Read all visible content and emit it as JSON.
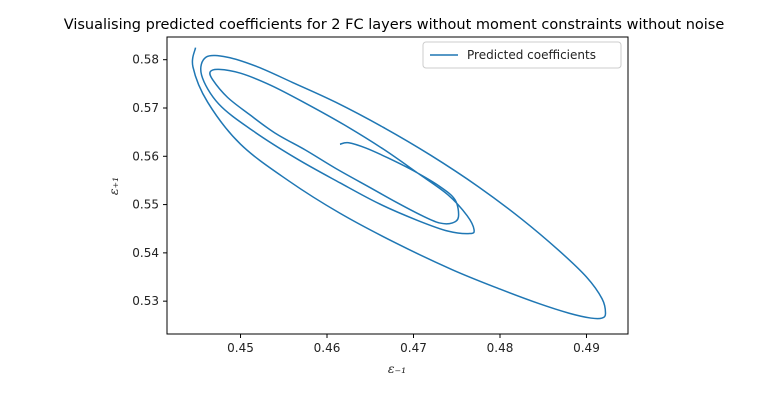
{
  "chart_data": {
    "type": "line",
    "title": "Visualising predicted coefficients for 2 FC layers without moment constraints without noise",
    "xlabel": "ε₋₁",
    "ylabel": "ε₊₁",
    "xlim": [
      0.4415,
      0.4948
    ],
    "ylim": [
      0.5232,
      0.5847
    ],
    "xticks": [
      0.45,
      0.46,
      0.47,
      0.48,
      0.49
    ],
    "yticks": [
      0.53,
      0.54,
      0.55,
      0.56,
      0.57,
      0.58
    ],
    "xtick_labels": [
      "0.45",
      "0.46",
      "0.47",
      "0.48",
      "0.49"
    ],
    "ytick_labels": [
      "0.53",
      "0.54",
      "0.55",
      "0.56",
      "0.57",
      "0.58"
    ],
    "grid": false,
    "legend_position": "top-right",
    "series": [
      {
        "name": "Predicted coefficients",
        "color": "#1f77b4",
        "x": [
          0.4615,
          0.4625,
          0.4645,
          0.467,
          0.47,
          0.473,
          0.4748,
          0.4752,
          0.4745,
          0.473,
          0.471,
          0.468,
          0.465,
          0.461,
          0.4575,
          0.454,
          0.451,
          0.4485,
          0.4468,
          0.4465,
          0.4475,
          0.45,
          0.4535,
          0.4575,
          0.462,
          0.4665,
          0.4705,
          0.474,
          0.4762,
          0.477,
          0.4765,
          0.474,
          0.4705,
          0.466,
          0.4615,
          0.4565,
          0.4515,
          0.4475,
          0.4455,
          0.446,
          0.4485,
          0.452,
          0.456,
          0.461,
          0.4665,
          0.472,
          0.4775,
          0.4825,
          0.4868,
          0.49,
          0.4918,
          0.4922,
          0.4918,
          0.4905,
          0.488,
          0.4845,
          0.48,
          0.4745,
          0.468,
          0.4615,
          0.4555,
          0.45,
          0.4462,
          0.4445,
          0.4448
        ],
        "y": [
          0.5625,
          0.5628,
          0.5617,
          0.5597,
          0.557,
          0.5538,
          0.551,
          0.5475,
          0.5462,
          0.5462,
          0.5477,
          0.5505,
          0.5535,
          0.5575,
          0.5613,
          0.5648,
          0.5687,
          0.5722,
          0.5758,
          0.5775,
          0.578,
          0.5772,
          0.5747,
          0.571,
          0.5665,
          0.5615,
          0.5565,
          0.552,
          0.5477,
          0.5448,
          0.544,
          0.5445,
          0.5467,
          0.5502,
          0.5545,
          0.5595,
          0.5652,
          0.5708,
          0.5768,
          0.5805,
          0.5805,
          0.5785,
          0.5753,
          0.5712,
          0.566,
          0.5602,
          0.5537,
          0.547,
          0.5405,
          0.535,
          0.5305,
          0.5275,
          0.5265,
          0.5265,
          0.5275,
          0.5295,
          0.5325,
          0.5365,
          0.542,
          0.5482,
          0.555,
          0.5625,
          0.5712,
          0.5785,
          0.5825
        ]
      }
    ]
  }
}
